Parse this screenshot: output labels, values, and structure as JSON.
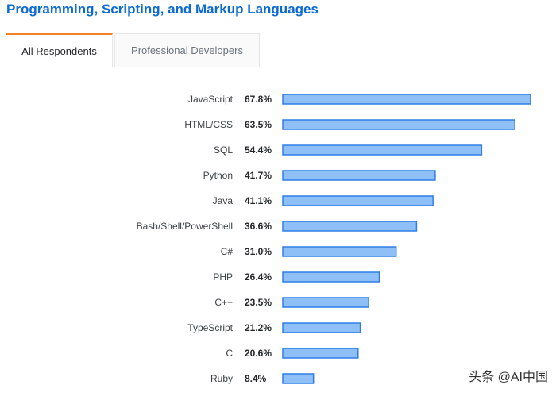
{
  "title": "Programming, Scripting, and Markup Languages",
  "tabs": [
    {
      "label": "All Respondents",
      "active": true
    },
    {
      "label": "Professional Developers",
      "active": false
    }
  ],
  "colors": {
    "title": "#0c6ad0",
    "tab_accent": "#f48024",
    "bar_fill": "#8ec0f7",
    "bar_stroke": "#2f7ee6"
  },
  "chart_data": {
    "type": "bar",
    "orientation": "horizontal",
    "categories": [
      "JavaScript",
      "HTML/CSS",
      "SQL",
      "Python",
      "Java",
      "Bash/Shell/PowerShell",
      "C#",
      "PHP",
      "C++",
      "TypeScript",
      "C",
      "Ruby"
    ],
    "values": [
      67.8,
      63.5,
      54.4,
      41.7,
      41.1,
      36.6,
      31.0,
      26.4,
      23.5,
      21.2,
      20.6,
      8.4
    ],
    "value_labels": [
      "67.8%",
      "63.5%",
      "54.4%",
      "41.7%",
      "41.1%",
      "36.6%",
      "31.0%",
      "26.4%",
      "23.5%",
      "21.2%",
      "20.6%",
      "8.4%"
    ],
    "unit": "%",
    "grid": false,
    "legend": "none"
  },
  "watermark": "头条 @AI中国"
}
